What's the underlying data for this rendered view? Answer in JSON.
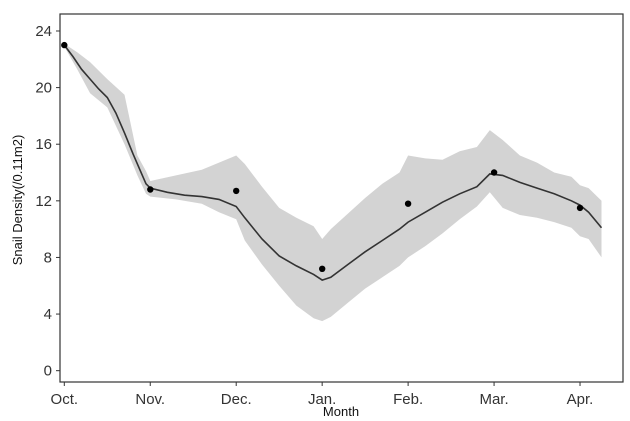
{
  "chart_data": {
    "type": "line",
    "title": "",
    "xlabel": "Month",
    "ylabel": "Snail Density(/0.11m2)",
    "x_ticks": [
      "Oct.",
      "Nov.",
      "Dec.",
      "Jan.",
      "Feb.",
      "Mar.",
      "Apr."
    ],
    "y_ticks": [
      0,
      4,
      8,
      12,
      16,
      20,
      24
    ],
    "xlim": [
      -0.05,
      6.5
    ],
    "ylim": [
      -0.8,
      25.2
    ],
    "grid": false,
    "colors": {
      "line": "#333333",
      "band": "#d3d3d3",
      "points": "#000000",
      "frame": "#333333"
    },
    "series": [
      {
        "type": "band",
        "x": [
          0,
          0.15,
          0.3,
          0.5,
          0.7,
          0.85,
          0.95,
          1.0,
          1.3,
          1.6,
          1.8,
          2.0,
          2.1,
          2.3,
          2.5,
          2.7,
          2.9,
          3.0,
          3.1,
          3.3,
          3.5,
          3.7,
          3.9,
          4.0,
          4.2,
          4.4,
          4.6,
          4.8,
          4.95,
          5.1,
          5.3,
          5.5,
          5.7,
          5.9,
          6.0,
          6.1,
          6.25
        ],
        "lower": [
          22.9,
          21.3,
          19.6,
          18.6,
          16.0,
          13.8,
          12.5,
          12.3,
          12.1,
          11.8,
          11.2,
          10.7,
          9.2,
          7.5,
          6.0,
          4.6,
          3.7,
          3.5,
          3.8,
          4.8,
          5.8,
          6.6,
          7.4,
          8.0,
          8.8,
          9.7,
          10.7,
          11.6,
          12.6,
          11.5,
          11.0,
          10.8,
          10.5,
          10.1,
          9.5,
          9.3,
          8.0
        ],
        "upper": [
          23.1,
          22.5,
          21.8,
          20.6,
          19.5,
          15.2,
          14.1,
          13.4,
          13.8,
          14.2,
          14.7,
          15.2,
          14.6,
          13.0,
          11.5,
          10.8,
          10.2,
          9.3,
          10.0,
          11.1,
          12.2,
          13.2,
          14.0,
          15.2,
          15.0,
          14.9,
          15.5,
          15.8,
          17.0,
          16.3,
          15.2,
          14.7,
          14.0,
          13.7,
          13.1,
          12.9,
          12.0
        ]
      },
      {
        "type": "line",
        "x": [
          0,
          0.1,
          0.2,
          0.3,
          0.4,
          0.5,
          0.6,
          0.7,
          0.8,
          0.9,
          0.95,
          1.0,
          1.2,
          1.4,
          1.6,
          1.8,
          2.0,
          2.1,
          2.3,
          2.5,
          2.7,
          2.9,
          3.0,
          3.1,
          3.3,
          3.5,
          3.7,
          3.9,
          4.0,
          4.2,
          4.4,
          4.6,
          4.8,
          4.95,
          5.1,
          5.3,
          5.5,
          5.7,
          5.9,
          6.0,
          6.1,
          6.25
        ],
        "y": [
          23.0,
          22.2,
          21.3,
          20.6,
          19.9,
          19.3,
          18.2,
          16.8,
          15.3,
          13.9,
          13.2,
          12.9,
          12.6,
          12.4,
          12.3,
          12.1,
          11.6,
          10.8,
          9.3,
          8.1,
          7.4,
          6.8,
          6.4,
          6.6,
          7.5,
          8.4,
          9.2,
          10.0,
          10.5,
          11.2,
          11.9,
          12.5,
          13.0,
          13.9,
          13.8,
          13.3,
          12.9,
          12.5,
          12.0,
          11.7,
          11.2,
          10.1
        ]
      },
      {
        "type": "scatter",
        "x": [
          0,
          1.0,
          2.0,
          3.0,
          4.0,
          5.0,
          6.0
        ],
        "y": [
          23.0,
          12.8,
          12.7,
          7.2,
          11.8,
          14.0,
          11.5
        ]
      }
    ]
  }
}
